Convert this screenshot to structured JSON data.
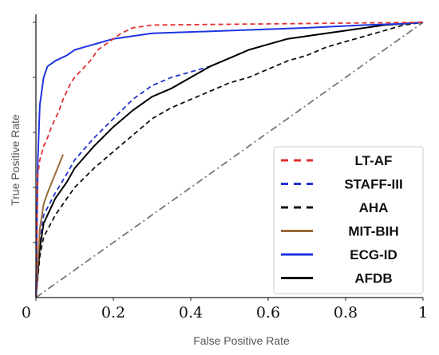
{
  "chart_data": {
    "type": "line",
    "title": "",
    "xlabel": "False Positive Rate",
    "ylabel": "True Positive Rate",
    "xlim": [
      0,
      1
    ],
    "ylim": [
      0,
      1
    ],
    "x_ticks": [
      "0",
      "0.2",
      "0.4",
      "0.6",
      "0.8",
      "1"
    ],
    "x_tick_values": [
      0,
      0.2,
      0.4,
      0.6,
      0.8,
      1
    ],
    "legend_position": "lower-right",
    "grid": false,
    "series": [
      {
        "name": "LT-AF",
        "color": "#e03030",
        "style": "dashed",
        "x": [
          0,
          0.005,
          0.01,
          0.02,
          0.03,
          0.04,
          0.05,
          0.06,
          0.07,
          0.08,
          0.09,
          0.1,
          0.12,
          0.14,
          0.16,
          0.18,
          0.2,
          0.22,
          0.25,
          0.3,
          1
        ],
        "y": [
          0,
          0.45,
          0.5,
          0.55,
          0.58,
          0.62,
          0.65,
          0.68,
          0.72,
          0.75,
          0.78,
          0.8,
          0.83,
          0.86,
          0.9,
          0.92,
          0.94,
          0.96,
          0.98,
          0.99,
          1
        ]
      },
      {
        "name": "STAFF-III",
        "color": "#2233cc",
        "style": "dashed",
        "x": [
          0,
          0.01,
          0.02,
          0.05,
          0.08,
          0.1,
          0.15,
          0.2,
          0.25,
          0.3,
          0.35,
          0.4,
          0.45,
          0.5,
          0.55,
          0.6,
          0.65,
          0.7,
          0.75,
          0.8,
          0.85,
          0.9,
          1
        ],
        "y": [
          0,
          0.2,
          0.3,
          0.38,
          0.45,
          0.5,
          0.58,
          0.65,
          0.72,
          0.77,
          0.8,
          0.82,
          0.84,
          0.87,
          0.9,
          0.92,
          0.94,
          0.95,
          0.96,
          0.97,
          0.98,
          0.99,
          1
        ]
      },
      {
        "name": "AHA",
        "color": "#111111",
        "style": "dashed",
        "x": [
          0,
          0.01,
          0.02,
          0.05,
          0.1,
          0.15,
          0.2,
          0.25,
          0.3,
          0.35,
          0.4,
          0.45,
          0.5,
          0.55,
          0.6,
          0.65,
          0.7,
          0.75,
          0.8,
          0.85,
          0.9,
          0.95,
          1
        ],
        "y": [
          0,
          0.15,
          0.22,
          0.3,
          0.4,
          0.47,
          0.53,
          0.59,
          0.65,
          0.69,
          0.72,
          0.75,
          0.78,
          0.8,
          0.83,
          0.86,
          0.88,
          0.91,
          0.93,
          0.95,
          0.97,
          0.99,
          1
        ]
      },
      {
        "name": "MIT-BIH",
        "color": "#9a6a3a",
        "style": "solid",
        "x": [
          0,
          0.005,
          0.01,
          0.02,
          0.03,
          0.05,
          0.07
        ],
        "y": [
          0,
          0.12,
          0.25,
          0.34,
          0.38,
          0.45,
          0.52
        ]
      },
      {
        "name": "ECG-ID",
        "color": "#1e35e0",
        "style": "solid",
        "x": [
          0,
          0.005,
          0.01,
          0.02,
          0.03,
          0.05,
          0.08,
          0.1,
          0.15,
          0.2,
          0.3,
          0.5,
          0.7,
          0.85,
          0.95,
          1
        ],
        "y": [
          0,
          0.5,
          0.7,
          0.8,
          0.84,
          0.86,
          0.88,
          0.9,
          0.92,
          0.94,
          0.96,
          0.97,
          0.98,
          0.99,
          0.995,
          1
        ]
      },
      {
        "name": "AFDB",
        "color": "#000000",
        "style": "solid",
        "x": [
          0,
          0.01,
          0.02,
          0.05,
          0.08,
          0.1,
          0.15,
          0.2,
          0.25,
          0.3,
          0.35,
          0.4,
          0.45,
          0.5,
          0.55,
          0.6,
          0.65,
          0.7,
          0.75,
          0.8,
          0.85,
          0.9,
          1
        ],
        "y": [
          0,
          0.18,
          0.27,
          0.36,
          0.42,
          0.47,
          0.55,
          0.62,
          0.68,
          0.73,
          0.76,
          0.8,
          0.84,
          0.87,
          0.9,
          0.92,
          0.94,
          0.95,
          0.96,
          0.97,
          0.98,
          0.99,
          1
        ]
      },
      {
        "name": "",
        "color": "#777777",
        "style": "dashdot",
        "x": [
          0,
          1
        ],
        "y": [
          0,
          1
        ]
      }
    ],
    "legend": [
      "LT-AF",
      "STAFF-III",
      "AHA",
      "MIT-BIH",
      "ECG-ID",
      "AFDB"
    ]
  }
}
